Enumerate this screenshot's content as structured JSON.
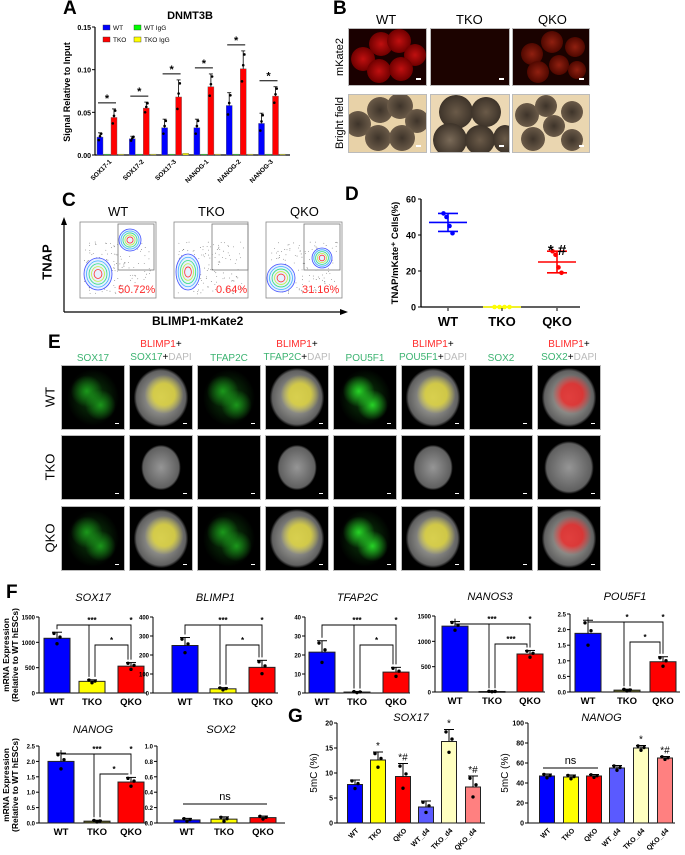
{
  "panel_letters": {
    "A": "A",
    "B": "B",
    "C": "C",
    "D": "D",
    "E": "E",
    "F": "F",
    "G": "G"
  },
  "colors": {
    "wt": "#0000ff",
    "tko": "#ffff00",
    "qko": "#ff0000",
    "wt_igg": "#00ff00",
    "tko_igg": "#ffff00",
    "wt_d4": "#5a5aff",
    "tko_d4": "#ffffc0",
    "qko_d4": "#ff8080"
  },
  "panel_b": {
    "columns": [
      "WT",
      "TKO",
      "QKO"
    ],
    "rows": [
      "mKate2",
      "Bright field"
    ]
  },
  "panel_c": {
    "columns": [
      "WT",
      "TKO",
      "QKO"
    ],
    "percentages": [
      "50.72%",
      "0.64%",
      "31.16%"
    ],
    "y_label": "TNAP",
    "x_label": "BLIMP1-mKate2"
  },
  "panel_e": {
    "rows": [
      "WT",
      "TKO",
      "QKO"
    ],
    "columns": [
      {
        "line1": "",
        "marker": "SOX17"
      },
      {
        "line1": "BLIMP1",
        "plus1": "+",
        "marker": "SOX17",
        "plus2": "+",
        "dapi": "DAPI"
      },
      {
        "line1": "",
        "marker": "TFAP2C"
      },
      {
        "line1": "BLIMP1",
        "plus1": "+",
        "marker": "TFAP2C",
        "plus2": "+",
        "dapi": "DAPI"
      },
      {
        "line1": "",
        "marker": "POU5F1"
      },
      {
        "line1": "BLIMP1",
        "plus1": "+",
        "marker": "POU5F1",
        "plus2": "+",
        "dapi": "DAPI"
      },
      {
        "line1": "",
        "marker": "SOX2"
      },
      {
        "line1": "BLIMP1",
        "plus1": "+",
        "marker": "SOX2",
        "plus2": "+",
        "dapi": "DAPI"
      }
    ]
  },
  "f_ylabel": {
    "line1": "mRNA Expression",
    "line2": "(Relative to WT hESCs)"
  },
  "g_ylabel": "5mC (%)",
  "chart_data": [
    {
      "id": "A",
      "type": "bar",
      "title": "DNMT3B",
      "ylabel": "Signal Relative to Input",
      "ylim": [
        0,
        0.15
      ],
      "yticks": [
        "0.00",
        "0.05",
        "0.10",
        "0.15"
      ],
      "ytick_values": [
        0,
        0.05,
        0.1,
        0.15
      ],
      "categories": [
        "SOX17-1",
        "SOX17-2",
        "SOX17-3",
        "NANOG-1",
        "NANOG-2",
        "NANOG-3"
      ],
      "legend": [
        "WT",
        "TKO",
        "WT IgG",
        "TKO IgG"
      ],
      "series": [
        {
          "name": "WT",
          "color": "#0000ff",
          "values": [
            0.021,
            0.019,
            0.032,
            0.032,
            0.058,
            0.037
          ],
          "errors": [
            0.005,
            0.003,
            0.01,
            0.01,
            0.015,
            0.012
          ]
        },
        {
          "name": "WT IgG",
          "color": "#00ff00",
          "values": [
            0.001,
            0.001,
            0.001,
            0.001,
            0.001,
            0.001
          ],
          "errors": [
            0,
            0,
            0,
            0,
            0,
            0
          ]
        },
        {
          "name": "TKO",
          "color": "#ff0000",
          "values": [
            0.044,
            0.055,
            0.068,
            0.08,
            0.101,
            0.069
          ],
          "errors": [
            0.01,
            0.007,
            0.02,
            0.015,
            0.021,
            0.011
          ]
        },
        {
          "name": "TKO IgG",
          "color": "#ffff00",
          "values": [
            0.001,
            0.001,
            0.002,
            0.001,
            0.001,
            0.001
          ],
          "errors": [
            0,
            0,
            0,
            0,
            0,
            0
          ]
        }
      ],
      "significance": [
        "*",
        "*",
        "*",
        "*",
        "*",
        "*"
      ]
    },
    {
      "id": "D",
      "type": "scatter",
      "ylabel": "TNAP/mKate⁺ Cells(%)",
      "ylim": [
        0,
        60
      ],
      "yticks": [
        "0",
        "20",
        "40",
        "60"
      ],
      "ytick_values": [
        0,
        20,
        40,
        60
      ],
      "categories": [
        "WT",
        "TKO",
        "QKO"
      ],
      "colors": [
        "#0000ff",
        "#ffff00",
        "#ff0000"
      ],
      "means": [
        47,
        0,
        25
      ],
      "sd": [
        5,
        0,
        6
      ],
      "points": [
        [
          52,
          50,
          45,
          41
        ],
        [
          0,
          0,
          0,
          0
        ],
        [
          31,
          29,
          22,
          19
        ]
      ],
      "annotations": [
        "",
        "",
        "* #"
      ]
    },
    {
      "id": "F-SOX17",
      "type": "bar",
      "title": "SOX17",
      "ylim": [
        0,
        1500
      ],
      "yticks": [
        "0",
        "500",
        "1000",
        "1500"
      ],
      "ytick_values": [
        0,
        500,
        1000,
        1500
      ],
      "categories": [
        "WT",
        "TKO",
        "QKO"
      ],
      "values": [
        1080,
        230,
        530
      ],
      "errors": [
        120,
        30,
        70
      ],
      "colors": [
        "#0000ff",
        "#ffff00",
        "#ff0000"
      ],
      "significance": {
        "wt_tko": "***",
        "wt_qko": "*",
        "tko_qko": "*"
      }
    },
    {
      "id": "F-BLIMP1",
      "type": "bar",
      "title": "BLIMP1",
      "ylim": [
        0,
        400
      ],
      "yticks": [
        "0",
        "100",
        "200",
        "300",
        "400"
      ],
      "ytick_values": [
        0,
        100,
        200,
        300,
        400
      ],
      "categories": [
        "WT",
        "TKO",
        "QKO"
      ],
      "values": [
        250,
        22,
        135
      ],
      "errors": [
        42,
        6,
        37
      ],
      "colors": [
        "#0000ff",
        "#ffff00",
        "#ff0000"
      ],
      "significance": {
        "wt_tko": "***",
        "wt_qko": "*",
        "tko_qko": "*"
      }
    },
    {
      "id": "F-TFAP2C",
      "type": "bar",
      "title": "TFAP2C",
      "ylim": [
        0,
        40
      ],
      "yticks": [
        "0",
        "10",
        "20",
        "30",
        "40"
      ],
      "ytick_values": [
        0,
        10,
        20,
        30,
        40
      ],
      "categories": [
        "WT",
        "TKO",
        "QKO"
      ],
      "values": [
        21.5,
        0.5,
        11
      ],
      "errors": [
        6,
        0.3,
        2.5
      ],
      "colors": [
        "#0000ff",
        "#ffff00",
        "#ff0000"
      ],
      "significance": {
        "wt_tko": "***",
        "wt_qko": "*",
        "tko_qko": "*"
      }
    },
    {
      "id": "F-NANOS3",
      "type": "bar",
      "title": "NANOS3",
      "ylim": [
        0,
        1500
      ],
      "yticks": [
        "0",
        "500",
        "1000",
        "1500"
      ],
      "ytick_values": [
        0,
        500,
        1000,
        1500
      ],
      "categories": [
        "WT",
        "TKO",
        "QKO"
      ],
      "values": [
        1300,
        10,
        750
      ],
      "errors": [
        90,
        5,
        70
      ],
      "colors": [
        "#0000ff",
        "#ffff00",
        "#ff0000"
      ],
      "significance": {
        "wt_tko": "***",
        "wt_qko": "*",
        "tko_qko": "***"
      }
    },
    {
      "id": "F-POU5F1",
      "type": "bar",
      "title": "POU5F1",
      "ylim": [
        0,
        2.5
      ],
      "yticks": [
        "0.0",
        "0.5",
        "1.0",
        "1.5",
        "2.0",
        "2.5"
      ],
      "ytick_values": [
        0,
        0.5,
        1,
        1.5,
        2,
        2.5
      ],
      "categories": [
        "WT",
        "TKO",
        "QKO"
      ],
      "values": [
        1.88,
        0.06,
        0.97
      ],
      "errors": [
        0.42,
        0.03,
        0.16
      ],
      "colors": [
        "#0000ff",
        "#6b6b20",
        "#ff0000"
      ],
      "significance": {
        "wt_tko": "*",
        "wt_qko": "*",
        "tko_qko": "*"
      }
    },
    {
      "id": "F-NANOG",
      "type": "bar",
      "title": "NANOG",
      "ylim": [
        0,
        2.5
      ],
      "yticks": [
        "0.0",
        "0.5",
        "1.0",
        "1.5",
        "2.0",
        "2.5"
      ],
      "ytick_values": [
        0,
        0.5,
        1,
        1.5,
        2,
        2.5
      ],
      "categories": [
        "WT",
        "TKO",
        "QKO"
      ],
      "values": [
        2.0,
        0.06,
        1.33
      ],
      "errors": [
        0.27,
        0.03,
        0.15
      ],
      "colors": [
        "#0000ff",
        "#6b6b20",
        "#ff0000"
      ],
      "significance": {
        "wt_tko": "***",
        "wt_qko": "*",
        "tko_qko": "*"
      }
    },
    {
      "id": "F-SOX2",
      "type": "bar",
      "title": "SOX2",
      "ylim": [
        0,
        1.0
      ],
      "yticks": [
        "0.0",
        "0.2",
        "0.4",
        "0.6",
        "0.8",
        "1.0"
      ],
      "ytick_values": [
        0,
        0.2,
        0.4,
        0.6,
        0.8,
        1.0
      ],
      "categories": [
        "WT",
        "TKO",
        "QKO"
      ],
      "values": [
        0.04,
        0.05,
        0.07
      ],
      "errors": [
        0.02,
        0.03,
        0.02
      ],
      "colors": [
        "#0000ff",
        "#ffff00",
        "#ff0000"
      ],
      "ns_label": "ns"
    },
    {
      "id": "G-SOX17",
      "type": "bar",
      "title": "SOX17",
      "ylabel": "5mC (%)",
      "ylim": [
        0,
        20
      ],
      "yticks": [
        "0",
        "5",
        "10",
        "15",
        "20"
      ],
      "ytick_values": [
        0,
        5,
        10,
        15,
        20
      ],
      "categories": [
        "WT",
        "TKO",
        "QKO",
        "WT_d4",
        "TKO_d4",
        "QKO_d4"
      ],
      "values": [
        7.7,
        12.6,
        9.3,
        3.2,
        16.3,
        7.2
      ],
      "errors": [
        0.9,
        1.6,
        2.6,
        1.2,
        2.4,
        2.2
      ],
      "colors": [
        "#0000ff",
        "#ffff00",
        "#ff0000",
        "#5a5aff",
        "#ffffc0",
        "#ff8080"
      ],
      "marks": [
        "",
        "*",
        "*#",
        "",
        "*",
        "*#"
      ]
    },
    {
      "id": "G-NANOG",
      "type": "bar",
      "title": "NANOG",
      "ylabel": "5mC (%)",
      "ylim": [
        0,
        100
      ],
      "yticks": [
        "0",
        "20",
        "40",
        "60",
        "80",
        "100"
      ],
      "ytick_values": [
        0,
        20,
        40,
        60,
        80,
        100
      ],
      "categories": [
        "WT",
        "TKO",
        "QKO",
        "WT_d4",
        "TKO_d4",
        "QKO_d4"
      ],
      "values": [
        47,
        46,
        47,
        55,
        75,
        65
      ],
      "errors": [
        2,
        2,
        1.5,
        2.5,
        2.5,
        1.5
      ],
      "colors": [
        "#0000ff",
        "#ffff00",
        "#ff0000",
        "#5a5aff",
        "#ffffc0",
        "#ff8080"
      ],
      "marks": [
        "",
        "",
        "",
        "",
        "*",
        "*#"
      ],
      "ns_label": "ns"
    }
  ]
}
